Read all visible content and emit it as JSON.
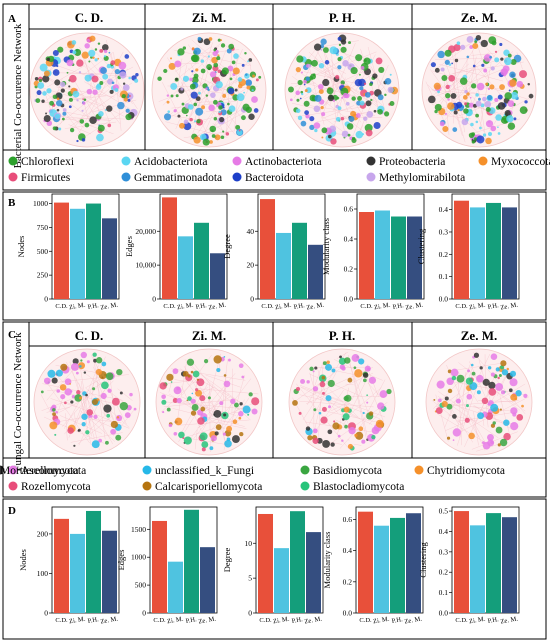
{
  "panels": {
    "A": {
      "letter": "A",
      "side_label": "Bacterial Co-occurence Network",
      "groups": [
        "C. D.",
        "Zi. M.",
        "P. H.",
        "Ze. M."
      ]
    },
    "C": {
      "letter": "C",
      "side_label": "Fungal Co-occurrence Network",
      "groups": [
        "C. D.",
        "Zi. M.",
        "P. H.",
        "Ze. M."
      ]
    },
    "B": {
      "letter": "B"
    },
    "D": {
      "letter": "D"
    }
  },
  "legend_bacteria": [
    {
      "name": "Chloroflexi",
      "color": "#2ca02c"
    },
    {
      "name": "Acidobacteriota",
      "color": "#5ad6f2"
    },
    {
      "name": "Actinobacteriota",
      "color": "#e67be6"
    },
    {
      "name": "Proteobacteria",
      "color": "#333333"
    },
    {
      "name": "Myxococcota",
      "color": "#f5902a"
    },
    {
      "name": "Firmicutes",
      "color": "#e84d7a"
    },
    {
      "name": "Gemmatimonadota",
      "color": "#2f8fd8"
    },
    {
      "name": "Bacteroidota",
      "color": "#1d3fc9"
    },
    {
      "name": "Methylomirabilota",
      "color": "#c7a6ec"
    }
  ],
  "legend_fungi": [
    {
      "name": "Ascomycota",
      "color": "#e67be6"
    },
    {
      "name": "unclassified_k_Fungi",
      "color": "#26b8e8"
    },
    {
      "name": "Basidiomycota",
      "color": "#3aa641"
    },
    {
      "name": "Chytridiomycota",
      "color": "#f5902a"
    },
    {
      "name": "Mortierellomycota",
      "color": "#333333"
    },
    {
      "name": "Rozellomycota",
      "color": "#e84d7a"
    },
    {
      "name": "Calcarisporiellomycota",
      "color": "#b5740f"
    },
    {
      "name": "Blastocladiomycota",
      "color": "#27c47a"
    }
  ],
  "colors": {
    "C.D.": "#e8503a",
    "Zi. M.": "#4fc3e0",
    "P.H.": "#149e7b",
    "Ze. M.": "#354e80"
  },
  "chart_data": [
    {
      "panel": "B",
      "type": "bar",
      "ylabel": "Nodes",
      "categories": [
        "C.D.",
        "Zi. M.",
        "P.H.",
        "Ze. M."
      ],
      "values": [
        1010,
        945,
        1000,
        845
      ],
      "ylim": [
        0,
        1100
      ],
      "ticks": [
        0,
        250,
        500,
        750,
        1000
      ],
      "tick_labels": [
        "0",
        "250",
        "500",
        "750",
        "1000"
      ]
    },
    {
      "panel": "B",
      "type": "bar",
      "ylabel": "Edges",
      "categories": [
        "C.D.",
        "Zi. M.",
        "P.H.",
        "Ze. M."
      ],
      "values": [
        30000,
        18500,
        22500,
        13500
      ],
      "ylim": [
        0,
        31000
      ],
      "ticks": [
        0,
        10000,
        20000
      ],
      "tick_labels": [
        "0",
        "10,000",
        "20,000"
      ]
    },
    {
      "panel": "B",
      "type": "bar",
      "ylabel": "Degree",
      "categories": [
        "C.D.",
        "Zi. M.",
        "P.H.",
        "Ze. M."
      ],
      "values": [
        59,
        39,
        45,
        32
      ],
      "ylim": [
        0,
        62
      ],
      "ticks": [
        0,
        20,
        40
      ],
      "tick_labels": [
        "0",
        "20",
        "40"
      ]
    },
    {
      "panel": "B",
      "type": "bar",
      "ylabel": "Modularity class",
      "categories": [
        "C.D.",
        "Zi. M.",
        "P.H.",
        "Ze. M."
      ],
      "values": [
        0.58,
        0.59,
        0.55,
        0.55
      ],
      "ylim": [
        0,
        0.7
      ],
      "ticks": [
        0,
        0.2,
        0.4,
        0.6
      ],
      "tick_labels": [
        "0.0",
        "0.2",
        "0.4",
        "0.6"
      ]
    },
    {
      "panel": "B",
      "type": "bar",
      "ylabel": "Clustering",
      "categories": [
        "C.D.",
        "Zi. M.",
        "P.H.",
        "Ze. M."
      ],
      "values": [
        0.44,
        0.41,
        0.43,
        0.41
      ],
      "ylim": [
        0,
        0.47
      ],
      "ticks": [
        0,
        0.1,
        0.2,
        0.3,
        0.4
      ],
      "tick_labels": [
        "0.0",
        "0.1",
        "0.2",
        "0.3",
        "0.4"
      ]
    },
    {
      "panel": "D",
      "type": "bar",
      "ylabel": "Nodes",
      "categories": [
        "C.D.",
        "Zi. M.",
        "P.H.",
        "Ze. M."
      ],
      "values": [
        238,
        200,
        258,
        208
      ],
      "ylim": [
        0,
        268
      ],
      "ticks": [
        0,
        100,
        200
      ],
      "tick_labels": [
        "0",
        "100",
        "200"
      ]
    },
    {
      "panel": "D",
      "type": "bar",
      "ylabel": "Edges",
      "categories": [
        "C.D.",
        "Zi. M.",
        "P.H.",
        "Ze. M."
      ],
      "values": [
        1650,
        920,
        1850,
        1180
      ],
      "ylim": [
        0,
        1900
      ],
      "ticks": [
        0,
        500,
        1000,
        1500
      ],
      "tick_labels": [
        "0",
        "500",
        "1000",
        "1500"
      ]
    },
    {
      "panel": "D",
      "type": "bar",
      "ylabel": "Degree",
      "categories": [
        "C.D.",
        "Zi. M.",
        "P.H.",
        "Ze. M."
      ],
      "values": [
        14.2,
        9.3,
        14.6,
        11.6
      ],
      "ylim": [
        0,
        15.2
      ],
      "ticks": [
        0,
        5,
        10
      ],
      "tick_labels": [
        "0",
        "5",
        "10"
      ]
    },
    {
      "panel": "D",
      "type": "bar",
      "ylabel": "Modularity class",
      "categories": [
        "C.D.",
        "Zi. M.",
        "P.H.",
        "Ze. M."
      ],
      "values": [
        0.65,
        0.56,
        0.61,
        0.64
      ],
      "ylim": [
        0,
        0.68
      ],
      "ticks": [
        0,
        0.2,
        0.4,
        0.6
      ],
      "tick_labels": [
        "0.0",
        "0.2",
        "0.4",
        "0.6"
      ]
    },
    {
      "panel": "D",
      "type": "bar",
      "ylabel": "Clustering",
      "categories": [
        "C.D.",
        "Zi. M.",
        "P.H.",
        "Ze. M."
      ],
      "values": [
        0.5,
        0.43,
        0.49,
        0.47
      ],
      "ylim": [
        0,
        0.52
      ],
      "ticks": [
        0,
        0.1,
        0.2,
        0.3,
        0.4,
        0.5
      ],
      "tick_labels": [
        "0.0",
        "0.1",
        "0.2",
        "0.3",
        "0.4",
        "0.5"
      ]
    }
  ]
}
